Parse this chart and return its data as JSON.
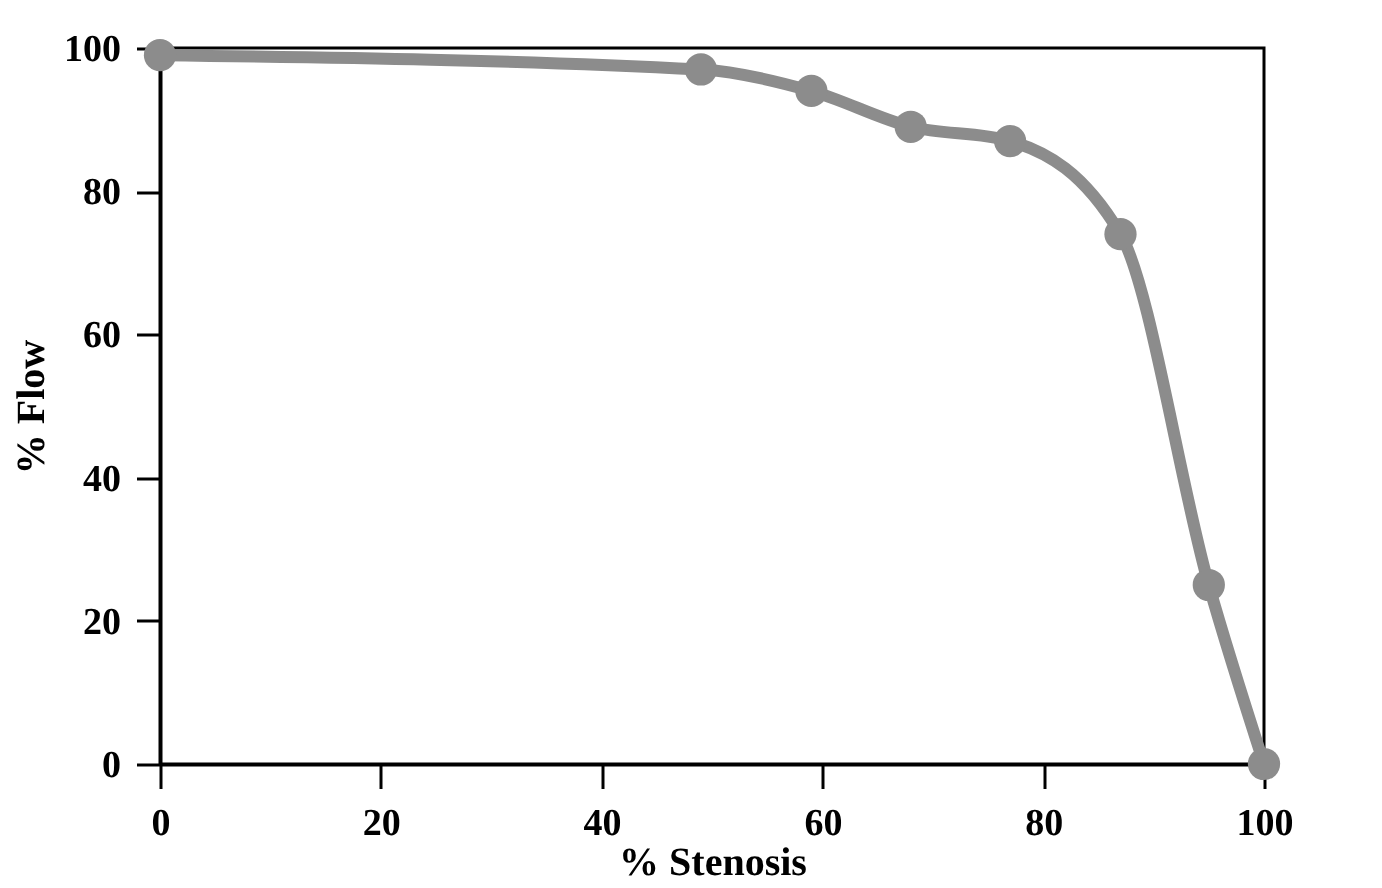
{
  "chart_data": {
    "type": "line",
    "xlabel": "% Stenosis",
    "ylabel": "% Flow",
    "x": [
      0,
      49,
      59,
      68,
      77,
      87,
      95,
      100
    ],
    "series": [
      {
        "color": "#8c8c8c",
        "values": [
          99,
          97,
          94,
          89,
          87,
          74,
          25,
          0
        ]
      }
    ],
    "xlim": [
      0,
      100
    ],
    "ylim": [
      0,
      100
    ],
    "xticks": [
      0,
      20,
      40,
      60,
      80,
      100
    ],
    "yticks": [
      0,
      20,
      40,
      60,
      80,
      100
    ],
    "grid": false,
    "marker": "circle",
    "line_style": "solid"
  }
}
